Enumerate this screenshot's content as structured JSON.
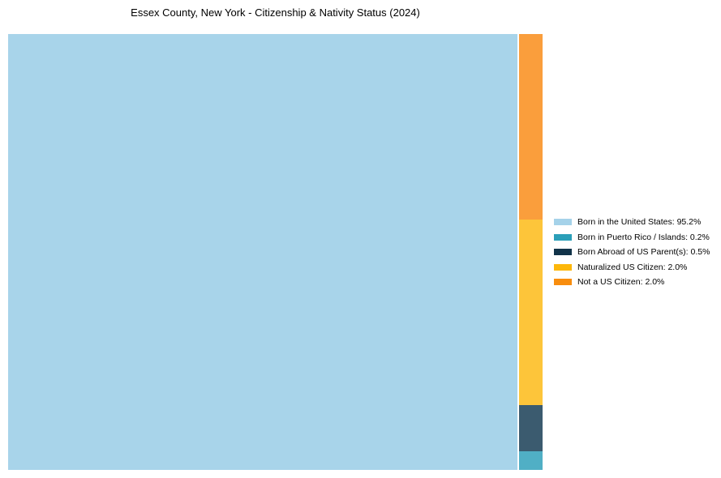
{
  "page": {
    "background": "#ffffff"
  },
  "chart_data": {
    "type": "treemap",
    "title": "Essex County, New York - Citizenship & Nativity Status (2024)",
    "legend_position": "right-center",
    "axes": "none",
    "grid": "off",
    "items": [
      {
        "slug": "born-in-us",
        "label": "Born in the United States",
        "value": 95.2,
        "unit": "%",
        "legend_label": "Born in the United States: 95.2%",
        "legend_color": "#A5D2E9",
        "fill_color": "#A8D4EA"
      },
      {
        "slug": "born-in-puerto-rico-islands",
        "label": "Born in Puerto Rico / Islands",
        "value": 0.2,
        "unit": "%",
        "legend_label": "Born in Puerto Rico / Islands: 0.2%",
        "legend_color": "#2B9FB8",
        "fill_color": "#50AFC5"
      },
      {
        "slug": "born-abroad-of-us-parents",
        "label": "Born Abroad of US Parent(s)",
        "value": 0.5,
        "unit": "%",
        "legend_label": "Born Abroad of US Parent(s): 0.5%",
        "legend_color": "#113349",
        "fill_color": "#3B5B6F"
      },
      {
        "slug": "naturalized-us-citizen",
        "label": "Naturalized US Citizen",
        "value": 2.0,
        "unit": "%",
        "legend_label": "Naturalized US Citizen: 2.0%",
        "legend_color": "#FDB70A",
        "fill_color": "#FDC53A"
      },
      {
        "slug": "not-a-us-citizen",
        "label": "Not a US Citizen",
        "value": 2.0,
        "unit": "%",
        "legend_label": "Not a US Citizen: 2.0%",
        "legend_color": "#F88D0E",
        "fill_color": "#FA9E3C"
      }
    ]
  }
}
